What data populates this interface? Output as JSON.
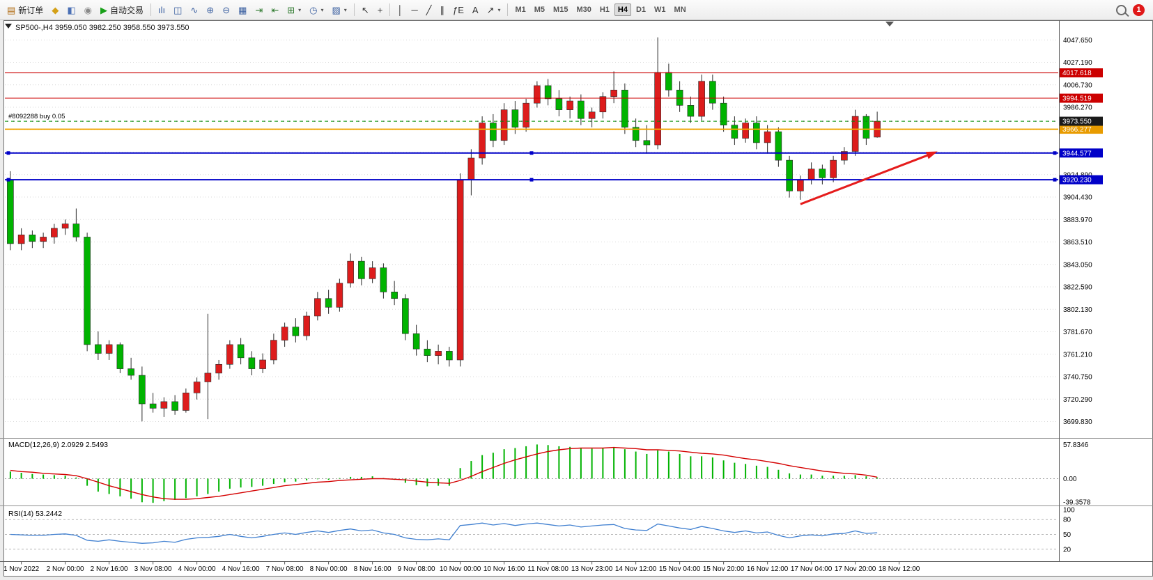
{
  "toolbar": {
    "groups": [
      {
        "items": [
          {
            "name": "new-order-button",
            "type": "labeled",
            "icon": "▤",
            "icon_color": "#b06a10",
            "label": "新订单"
          },
          {
            "name": "market-watch-button",
            "type": "icon",
            "icon": "◆",
            "icon_color": "#d4a017"
          },
          {
            "name": "data-window-button",
            "type": "icon",
            "icon": "◧",
            "icon_color": "#4a6fb5"
          },
          {
            "name": "navigator-button",
            "type": "icon",
            "icon": "◉",
            "icon_color": "#8a8a8a"
          },
          {
            "name": "auto-trading-button",
            "type": "labeled",
            "icon": "▶",
            "icon_color": "#18a018",
            "label": "自动交易"
          }
        ]
      },
      {
        "items": [
          {
            "name": "bar-chart-button",
            "type": "icon",
            "icon": "ılı",
            "icon_color": "#3a5fa0"
          },
          {
            "name": "candlestick-chart-button",
            "type": "icon",
            "icon": "◫",
            "icon_color": "#3a5fa0"
          },
          {
            "name": "line-chart-button",
            "type": "icon",
            "icon": "∿",
            "icon_color": "#3a5fa0"
          },
          {
            "name": "zoom-in-button",
            "type": "icon",
            "icon": "⊕",
            "icon_color": "#3a5fa0"
          },
          {
            "name": "zoom-out-button",
            "type": "icon",
            "icon": "⊖",
            "icon_color": "#3a5fa0"
          },
          {
            "name": "tile-windows-button",
            "type": "icon",
            "icon": "▦",
            "icon_color": "#3a5fa0"
          },
          {
            "name": "auto-scroll-button",
            "type": "icon",
            "icon": "⇥",
            "icon_color": "#2f7a2f"
          },
          {
            "name": "chart-shift-button",
            "type": "icon",
            "icon": "⇤",
            "icon_color": "#2f7a2f"
          },
          {
            "name": "indicators-dropdown",
            "type": "dropdown",
            "icon": "⊞",
            "icon_color": "#2f7a2f"
          },
          {
            "name": "periods-dropdown",
            "type": "dropdown",
            "icon": "◷",
            "icon_color": "#3a5fa0"
          },
          {
            "name": "templates-dropdown",
            "type": "dropdown",
            "icon": "▨",
            "icon_color": "#3a5fa0"
          }
        ]
      },
      {
        "items": [
          {
            "name": "cursor-button",
            "type": "icon",
            "icon": "↖",
            "icon_color": "#333333"
          },
          {
            "name": "crosshair-button",
            "type": "icon",
            "icon": "+",
            "icon_color": "#333333"
          }
        ]
      },
      {
        "items": [
          {
            "name": "vertical-line-button",
            "type": "icon",
            "icon": "│",
            "icon_color": "#333333"
          },
          {
            "name": "horizontal-line-button",
            "type": "icon",
            "icon": "─",
            "icon_color": "#333333"
          },
          {
            "name": "trendline-button",
            "type": "icon",
            "icon": "╱",
            "icon_color": "#333333"
          },
          {
            "name": "channel-button",
            "type": "icon",
            "icon": "∥",
            "icon_color": "#333333"
          },
          {
            "name": "fibonacci-button",
            "type": "icon",
            "icon": "ƒE",
            "icon_color": "#333333"
          },
          {
            "name": "text-button",
            "type": "icon",
            "icon": "A",
            "icon_color": "#333333"
          },
          {
            "name": "arrows-dropdown",
            "type": "dropdown",
            "icon": "↗",
            "icon_color": "#333333"
          }
        ]
      }
    ],
    "timeframes": [
      "M1",
      "M5",
      "M15",
      "M30",
      "H1",
      "H4",
      "D1",
      "W1",
      "MN"
    ],
    "active_timeframe": "H4",
    "notification_count": "1"
  },
  "chart": {
    "legend": {
      "symbol_period": "SP500-,H4",
      "ohlc": "3959.050 3982.250 3958.550 3973.550"
    }
  },
  "panels": {
    "macd": {
      "legend": "MACD(12,26,9) 2.0929 2.5493",
      "ticks": [
        {
          "label": "57.8346",
          "value": 57.8346
        },
        {
          "label": "0.00",
          "value": 0
        },
        {
          "label": "-39.3578",
          "value": -39.3578
        }
      ],
      "ylim": [
        -42,
        62
      ]
    },
    "rsi": {
      "legend": "RSI(14) 53.2442",
      "levels": [
        80,
        50,
        20
      ],
      "ticks": [
        {
          "label": "100",
          "value": 100
        },
        {
          "label": "80",
          "value": 80
        },
        {
          "label": "50",
          "value": 50
        },
        {
          "label": "20",
          "value": 20
        }
      ],
      "ylim": [
        0,
        100
      ]
    }
  },
  "colors": {
    "up": "#dd1c1c",
    "down": "#00b300",
    "wick": "#2a2a2a",
    "grid": "#d8d8d8",
    "macd_hist": "#00b300",
    "macd_signal": "#d40000",
    "rsi_line": "#3f7fd0",
    "arrow": "#e51c1c"
  },
  "chart_data": {
    "type": "candlestick",
    "symbol": "SP500-",
    "period": "H4",
    "ylim": [
      3690,
      4058
    ],
    "order_label": "#8092288 buy 0.05",
    "order_line_price": 3973.55,
    "price_ticks": [
      "4047.650",
      "4027.190",
      "4006.730",
      "3986.270",
      "3965.810",
      "3945.350",
      "3924.890",
      "3904.430",
      "3883.970",
      "3863.510",
      "3843.050",
      "3822.590",
      "3802.130",
      "3781.670",
      "3761.210",
      "3740.750",
      "3720.290",
      "3699.830"
    ],
    "hlines": [
      {
        "price": 4017.618,
        "color": "#cc0000",
        "width": 1,
        "style": "solid",
        "selected": false,
        "badge": "4017.618",
        "badge_bg": "#cc0000"
      },
      {
        "price": 3994.519,
        "color": "#cc0000",
        "width": 1,
        "style": "solid",
        "selected": false,
        "badge": "3994.519",
        "badge_bg": "#cc0000"
      },
      {
        "price": 3966.277,
        "color": "#f0a500",
        "width": 2,
        "style": "solid",
        "selected": false,
        "badge": "3966.277",
        "badge_bg": "#e89b00"
      },
      {
        "price": 3973.55,
        "color": "#00a000",
        "width": 1,
        "style": "dashed",
        "selected": false,
        "badge": "3973.550",
        "badge_bg": "#1a1a1a",
        "order_line": true
      },
      {
        "price": 3944.577,
        "color": "#0000c8",
        "width": 2,
        "style": "solid",
        "selected": true,
        "badge": "3944.577",
        "badge_bg": "#0000c8"
      },
      {
        "price": 3920.23,
        "color": "#0000c8",
        "width": 2,
        "style": "solid",
        "selected": true,
        "badge": "3920.230",
        "badge_bg": "#0000c8"
      }
    ],
    "annotations": {
      "trend_arrow": {
        "from_bar": 72,
        "from_price": 3898,
        "to_bar": 84.5,
        "to_price": 3946,
        "width": 3
      }
    },
    "time_labels": [
      "1 Nov 2022",
      "2 Nov 00:00",
      "2 Nov 16:00",
      "3 Nov 08:00",
      "4 Nov 00:00",
      "4 Nov 16:00",
      "7 Nov 08:00",
      "8 Nov 00:00",
      "8 Nov 16:00",
      "9 Nov 08:00",
      "10 Nov 00:00",
      "10 Nov 16:00",
      "11 Nov 08:00",
      "13 Nov 23:00",
      "14 Nov 12:00",
      "15 Nov 04:00",
      "15 Nov 20:00",
      "16 Nov 12:00",
      "17 Nov 04:00",
      "17 Nov 20:00",
      "18 Nov 12:00"
    ],
    "candles": [
      [
        3920,
        3928,
        3856,
        3862
      ],
      [
        3862,
        3876,
        3856,
        3870
      ],
      [
        3870,
        3874,
        3858,
        3864
      ],
      [
        3864,
        3872,
        3858,
        3868
      ],
      [
        3868,
        3880,
        3862,
        3876
      ],
      [
        3876,
        3884,
        3870,
        3880
      ],
      [
        3880,
        3894,
        3864,
        3868
      ],
      [
        3868,
        3872,
        3764,
        3770
      ],
      [
        3770,
        3782,
        3756,
        3762
      ],
      [
        3762,
        3774,
        3756,
        3770
      ],
      [
        3770,
        3772,
        3744,
        3748
      ],
      [
        3748,
        3758,
        3738,
        3742
      ],
      [
        3742,
        3750,
        3700,
        3716
      ],
      [
        3716,
        3726,
        3708,
        3712
      ],
      [
        3712,
        3722,
        3704,
        3718
      ],
      [
        3718,
        3724,
        3706,
        3710
      ],
      [
        3710,
        3730,
        3708,
        3726
      ],
      [
        3726,
        3740,
        3720,
        3736
      ],
      [
        3736,
        3798,
        3702,
        3744
      ],
      [
        3744,
        3756,
        3738,
        3752
      ],
      [
        3752,
        3774,
        3748,
        3770
      ],
      [
        3770,
        3776,
        3752,
        3758
      ],
      [
        3758,
        3764,
        3742,
        3748
      ],
      [
        3748,
        3762,
        3744,
        3756
      ],
      [
        3756,
        3780,
        3752,
        3774
      ],
      [
        3774,
        3790,
        3768,
        3786
      ],
      [
        3786,
        3794,
        3772,
        3778
      ],
      [
        3778,
        3800,
        3774,
        3796
      ],
      [
        3796,
        3818,
        3792,
        3812
      ],
      [
        3812,
        3820,
        3798,
        3804
      ],
      [
        3804,
        3830,
        3800,
        3826
      ],
      [
        3826,
        3853,
        3822,
        3846
      ],
      [
        3846,
        3850,
        3824,
        3830
      ],
      [
        3830,
        3846,
        3826,
        3840
      ],
      [
        3840,
        3844,
        3812,
        3818
      ],
      [
        3818,
        3828,
        3806,
        3812
      ],
      [
        3812,
        3816,
        3774,
        3780
      ],
      [
        3780,
        3788,
        3760,
        3766
      ],
      [
        3766,
        3774,
        3754,
        3760
      ],
      [
        3760,
        3770,
        3752,
        3764
      ],
      [
        3764,
        3768,
        3750,
        3756
      ],
      [
        3756,
        3926,
        3750,
        3920
      ],
      [
        3920,
        3948,
        3906,
        3940
      ],
      [
        3940,
        3978,
        3934,
        3972
      ],
      [
        3972,
        3980,
        3950,
        3956
      ],
      [
        3956,
        3990,
        3952,
        3984
      ],
      [
        3984,
        3992,
        3962,
        3968
      ],
      [
        3968,
        3994,
        3964,
        3990
      ],
      [
        3990,
        4010,
        3986,
        4006
      ],
      [
        4006,
        4012,
        3988,
        3994
      ],
      [
        3994,
        4002,
        3978,
        3984
      ],
      [
        3984,
        3996,
        3976,
        3992
      ],
      [
        3992,
        3998,
        3970,
        3976
      ],
      [
        3976,
        3986,
        3968,
        3982
      ],
      [
        3982,
        4000,
        3976,
        3996
      ],
      [
        3996,
        4019,
        3990,
        4002
      ],
      [
        4002,
        4008,
        3962,
        3968
      ],
      [
        3968,
        3976,
        3950,
        3956
      ],
      [
        3956,
        3970,
        3944,
        3952
      ],
      [
        3952,
        4050,
        3948,
        4018
      ],
      [
        4018,
        4026,
        3996,
        4002
      ],
      [
        4002,
        4010,
        3982,
        3988
      ],
      [
        3988,
        3996,
        3972,
        3978
      ],
      [
        3978,
        4016,
        3974,
        4010
      ],
      [
        4010,
        4016,
        3984,
        3990
      ],
      [
        3990,
        3996,
        3964,
        3970
      ],
      [
        3970,
        3978,
        3952,
        3958
      ],
      [
        3958,
        3976,
        3954,
        3972
      ],
      [
        3972,
        3978,
        3948,
        3954
      ],
      [
        3954,
        3970,
        3944,
        3964
      ],
      [
        3964,
        3968,
        3932,
        3938
      ],
      [
        3938,
        3942,
        3904,
        3910
      ],
      [
        3910,
        3924,
        3902,
        3920
      ],
      [
        3920,
        3936,
        3916,
        3930
      ],
      [
        3930,
        3934,
        3916,
        3922
      ],
      [
        3922,
        3942,
        3918,
        3938
      ],
      [
        3938,
        3950,
        3934,
        3946
      ],
      [
        3946,
        3984,
        3942,
        3978
      ],
      [
        3978,
        3980,
        3952,
        3958
      ],
      [
        3959.05,
        3982.25,
        3958.55,
        3973.55
      ]
    ],
    "macd": {
      "histogram": [
        12,
        10,
        8,
        7,
        6,
        5,
        2,
        -12,
        -22,
        -26,
        -30,
        -34,
        -40,
        -41,
        -38,
        -36,
        -33,
        -30,
        -26,
        -22,
        -17,
        -15,
        -14,
        -12,
        -9,
        -6,
        -5,
        -3,
        -1,
        -2,
        1,
        3,
        3,
        4,
        1,
        -2,
        -7,
        -11,
        -13,
        -12,
        -12,
        18,
        30,
        40,
        44,
        50,
        52,
        55,
        58,
        57,
        55,
        54,
        52,
        51,
        52,
        53,
        50,
        46,
        42,
        48,
        46,
        42,
        38,
        38,
        36,
        31,
        27,
        25,
        22,
        20,
        15,
        9,
        7,
        7,
        5,
        5,
        5,
        6,
        4,
        2.09
      ],
      "signal": [
        14,
        12,
        11,
        9,
        8,
        7,
        5,
        0,
        -6,
        -12,
        -17,
        -22,
        -27,
        -31,
        -34,
        -35,
        -35,
        -34,
        -32,
        -30,
        -27,
        -24,
        -21,
        -18,
        -15,
        -12,
        -10,
        -8,
        -6,
        -5,
        -3,
        -2,
        -1,
        0,
        0,
        -1,
        -2,
        -4,
        -6,
        -7,
        -8,
        -3,
        4,
        12,
        19,
        26,
        32,
        37,
        42,
        46,
        49,
        51,
        52,
        52,
        52,
        53,
        52,
        51,
        49,
        49,
        48,
        47,
        45,
        43,
        42,
        40,
        37,
        34,
        32,
        29,
        26,
        22,
        19,
        16,
        13,
        11,
        9,
        8,
        6,
        2.55
      ]
    },
    "rsi": {
      "values": [
        50,
        49,
        48,
        48,
        50,
        51,
        48,
        38,
        36,
        39,
        36,
        34,
        32,
        33,
        36,
        34,
        40,
        43,
        44,
        46,
        50,
        46,
        43,
        46,
        50,
        53,
        50,
        54,
        57,
        54,
        58,
        61,
        57,
        59,
        53,
        50,
        43,
        40,
        39,
        41,
        39,
        68,
        70,
        73,
        69,
        72,
        68,
        71,
        73,
        70,
        67,
        69,
        65,
        67,
        69,
        70,
        62,
        59,
        58,
        71,
        67,
        63,
        60,
        66,
        62,
        57,
        54,
        57,
        53,
        55,
        48,
        43,
        47,
        49,
        47,
        51,
        52,
        57,
        52,
        53.24
      ]
    }
  }
}
